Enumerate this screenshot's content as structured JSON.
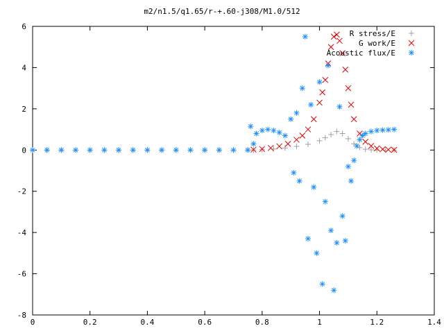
{
  "chart_data": {
    "type": "scatter",
    "title": "m2/n1.5/q1.65/r-+.60-j308/M1.0/512",
    "xlabel": "",
    "ylabel": "",
    "xlim": [
      0,
      1.4
    ],
    "ylim": [
      -8,
      6
    ],
    "x_ticks": [
      "0",
      "0.2",
      "0.4",
      "0.6",
      "0.8",
      "1",
      "1.2",
      "1.4"
    ],
    "y_ticks": [
      "-8",
      "-6",
      "-4",
      "-2",
      "0",
      "2",
      "4",
      "6"
    ],
    "grid": false,
    "legend_position": "top-right",
    "series": [
      {
        "name": "R stress/E",
        "marker": "+",
        "color": "#a0a0a0",
        "x": [
          0,
          0.05,
          0.1,
          0.15,
          0.2,
          0.25,
          0.3,
          0.35,
          0.4,
          0.45,
          0.5,
          0.55,
          0.6,
          0.65,
          0.7,
          0.75,
          0.77,
          0.8,
          0.84,
          0.88,
          0.92,
          0.96,
          1.0,
          1.02,
          1.04,
          1.06,
          1.08,
          1.1,
          1.12,
          1.14,
          1.16,
          1.18,
          1.2,
          1.23,
          1.26
        ],
        "y": [
          0,
          0,
          0,
          0,
          0,
          0,
          0,
          0,
          0,
          0,
          0,
          0,
          0,
          0,
          0,
          0,
          0,
          0.02,
          0.05,
          0.1,
          0.18,
          0.28,
          0.45,
          0.6,
          0.75,
          0.9,
          0.8,
          0.55,
          0.3,
          0.12,
          0.04,
          0.01,
          0,
          0,
          0
        ]
      },
      {
        "name": "G work/E",
        "marker": "x",
        "color": "#e00000",
        "x": [
          0.77,
          0.8,
          0.83,
          0.86,
          0.89,
          0.92,
          0.94,
          0.96,
          0.98,
          1.0,
          1.01,
          1.02,
          1.03,
          1.04,
          1.05,
          1.06,
          1.07,
          1.08,
          1.09,
          1.1,
          1.11,
          1.12,
          1.14,
          1.16,
          1.18,
          1.2,
          1.22,
          1.24,
          1.26
        ],
        "y": [
          0.02,
          0.05,
          0.1,
          0.18,
          0.3,
          0.5,
          0.7,
          1.0,
          1.5,
          2.3,
          2.8,
          3.4,
          4.2,
          5.0,
          5.5,
          5.6,
          5.3,
          4.7,
          3.9,
          3.0,
          2.2,
          1.5,
          0.8,
          0.4,
          0.2,
          0.08,
          0.04,
          0.02,
          0.01
        ]
      },
      {
        "name": "Acoustic flux/E",
        "marker": "*",
        "color": "#1e90ff",
        "x": [
          0,
          0.05,
          0.1,
          0.15,
          0.2,
          0.25,
          0.3,
          0.35,
          0.4,
          0.45,
          0.5,
          0.55,
          0.6,
          0.65,
          0.7,
          0.75,
          0.76,
          0.77,
          0.78,
          0.8,
          0.82,
          0.84,
          0.86,
          0.88,
          0.9,
          0.91,
          0.92,
          0.93,
          0.94,
          0.95,
          0.96,
          0.97,
          0.98,
          0.99,
          1.0,
          1.01,
          1.02,
          1.03,
          1.04,
          1.05,
          1.06,
          1.07,
          1.08,
          1.09,
          1.1,
          1.11,
          1.12,
          1.13,
          1.14,
          1.15,
          1.16,
          1.18,
          1.2,
          1.22,
          1.24,
          1.26
        ],
        "y": [
          0,
          0,
          0,
          0,
          0,
          0,
          0,
          0,
          0,
          0,
          0,
          0,
          0,
          0,
          0,
          0,
          1.15,
          0.3,
          0.8,
          0.95,
          1.0,
          0.95,
          0.85,
          0.7,
          1.5,
          -1.1,
          1.8,
          -1.5,
          3.0,
          5.5,
          -4.3,
          2.2,
          -1.8,
          -5.0,
          3.3,
          -6.5,
          -2.5,
          4.1,
          -3.9,
          -6.8,
          -4.5,
          2.1,
          -3.2,
          -4.4,
          -0.8,
          -1.5,
          -0.5,
          0.2,
          0.5,
          0.7,
          0.8,
          0.9,
          0.95,
          0.97,
          0.98,
          1.0
        ]
      }
    ]
  }
}
